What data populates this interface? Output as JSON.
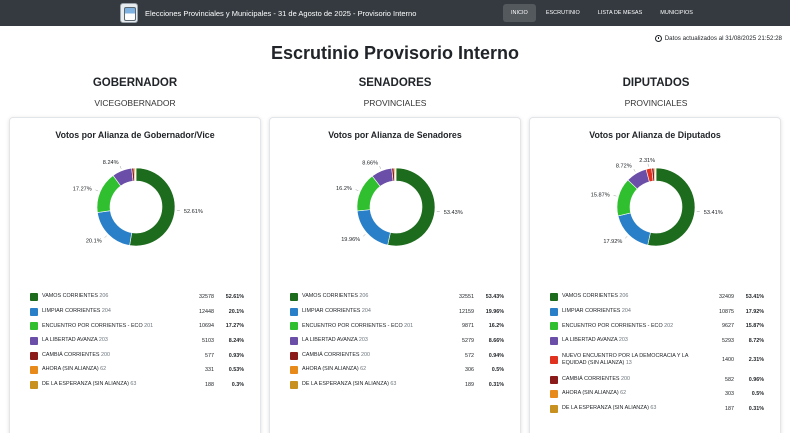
{
  "header": {
    "brand": "Elecciones Provinciales y Municipales - 31 de Agosto de 2025 - Provisorio Interno",
    "nav": [
      {
        "label": "INICIO",
        "active": true
      },
      {
        "label": "ESCRUTINIO",
        "active": false
      },
      {
        "label": "LISTA DE MESAS",
        "active": false
      },
      {
        "label": "MUNICIPIOS",
        "active": false
      }
    ],
    "updated": "Datos actualizados al 31/08/2025 21:52:28"
  },
  "page_title": "Escrutinio Provisorio Interno",
  "columns": [
    {
      "title": "GOBERNADOR",
      "subtitle": "VICEGOBERNADOR",
      "card_title": "Votos por Alianza de Gobernador/Vice",
      "rows": [
        {
          "name": "VAMOS CORRIENTES",
          "num": "206",
          "votes": "32578",
          "pct": "52.61%",
          "value": 52.61,
          "color": "#1d6b1d"
        },
        {
          "name": "LIMPIAR CORRIENTES",
          "num": "204",
          "votes": "12448",
          "pct": "20.1%",
          "value": 20.1,
          "color": "#2980c8"
        },
        {
          "name": "ENCUENTRO POR CORRIENTES - ECO",
          "num": "201",
          "votes": "10694",
          "pct": "17.27%",
          "value": 17.27,
          "color": "#2fbf2f"
        },
        {
          "name": "LA LIBERTAD AVANZA",
          "num": "203",
          "votes": "5103",
          "pct": "8.24%",
          "value": 8.24,
          "color": "#6b4ea8"
        },
        {
          "name": "CAMBIÁ CORRIENTES",
          "num": "200",
          "votes": "577",
          "pct": "0.93%",
          "value": 0.93,
          "color": "#8b1a1a"
        },
        {
          "name": "AHORA (SIN ALIANZA)",
          "num": "62",
          "votes": "331",
          "pct": "0.53%",
          "value": 0.53,
          "color": "#e88a1a"
        },
        {
          "name": "DE LA ESPERANZA (SIN ALIANZA)",
          "num": "63",
          "votes": "188",
          "pct": "0.3%",
          "value": 0.3,
          "color": "#c8901e"
        }
      ],
      "labels": [
        "52.61%",
        "20.1%",
        "17.27%",
        "8.24%"
      ]
    },
    {
      "title": "SENADORES",
      "subtitle": "PROVINCIALES",
      "card_title": "Votos por Alianza de Senadores",
      "rows": [
        {
          "name": "VAMOS CORRIENTES",
          "num": "206",
          "votes": "32551",
          "pct": "53.43%",
          "value": 53.43,
          "color": "#1d6b1d"
        },
        {
          "name": "LIMPIAR CORRIENTES",
          "num": "204",
          "votes": "12159",
          "pct": "19.96%",
          "value": 19.96,
          "color": "#2980c8"
        },
        {
          "name": "ENCUENTRO POR CORRIENTES - ECO",
          "num": "201",
          "votes": "9871",
          "pct": "16.2%",
          "value": 16.2,
          "color": "#2fbf2f"
        },
        {
          "name": "LA LIBERTAD AVANZA",
          "num": "203",
          "votes": "5279",
          "pct": "8.66%",
          "value": 8.66,
          "color": "#6b4ea8"
        },
        {
          "name": "CAMBIÁ CORRIENTES",
          "num": "200",
          "votes": "572",
          "pct": "0.94%",
          "value": 0.94,
          "color": "#8b1a1a"
        },
        {
          "name": "AHORA (SIN ALIANZA)",
          "num": "62",
          "votes": "306",
          "pct": "0.5%",
          "value": 0.5,
          "color": "#e88a1a"
        },
        {
          "name": "DE LA ESPERANZA (SIN ALIANZA)",
          "num": "63",
          "votes": "189",
          "pct": "0.31%",
          "value": 0.31,
          "color": "#c8901e"
        }
      ],
      "labels": [
        "53.43%",
        "19.96%",
        "16.2%",
        "8.66%"
      ]
    },
    {
      "title": "DIPUTADOS",
      "subtitle": "PROVINCIALES",
      "card_title": "Votos por Alianza de Diputados",
      "rows": [
        {
          "name": "VAMOS CORRIENTES",
          "num": "206",
          "votes": "32409",
          "pct": "53.41%",
          "value": 53.41,
          "color": "#1d6b1d"
        },
        {
          "name": "LIMPIAR CORRIENTES",
          "num": "204",
          "votes": "10875",
          "pct": "17.92%",
          "value": 17.92,
          "color": "#2980c8"
        },
        {
          "name": "ENCUENTRO POR CORRIENTES - ECO",
          "num": "202",
          "votes": "9627",
          "pct": "15.87%",
          "value": 15.87,
          "color": "#2fbf2f"
        },
        {
          "name": "LA LIBERTAD AVANZA",
          "num": "203",
          "votes": "5293",
          "pct": "8.72%",
          "value": 8.72,
          "color": "#6b4ea8"
        },
        {
          "name": "NUEVO ENCUENTRO POR LA DEMOCRACIA Y LA EQUIDAD (SIN ALIANZA)",
          "num": "13",
          "votes": "1400",
          "pct": "2.31%",
          "value": 2.31,
          "color": "#e0321e"
        },
        {
          "name": "CAMBIÁ CORRIENTES",
          "num": "200",
          "votes": "582",
          "pct": "0.96%",
          "value": 0.96,
          "color": "#8b1a1a"
        },
        {
          "name": "AHORA (SIN ALIANZA)",
          "num": "62",
          "votes": "303",
          "pct": "0.5%",
          "value": 0.5,
          "color": "#e88a1a"
        },
        {
          "name": "DE LA ESPERANZA (SIN ALIANZA)",
          "num": "63",
          "votes": "187",
          "pct": "0.31%",
          "value": 0.31,
          "color": "#c8901e"
        }
      ],
      "labels": [
        "53.41%",
        "17.92%",
        "15.87%",
        "8.72%",
        "2.31%"
      ]
    }
  ]
}
